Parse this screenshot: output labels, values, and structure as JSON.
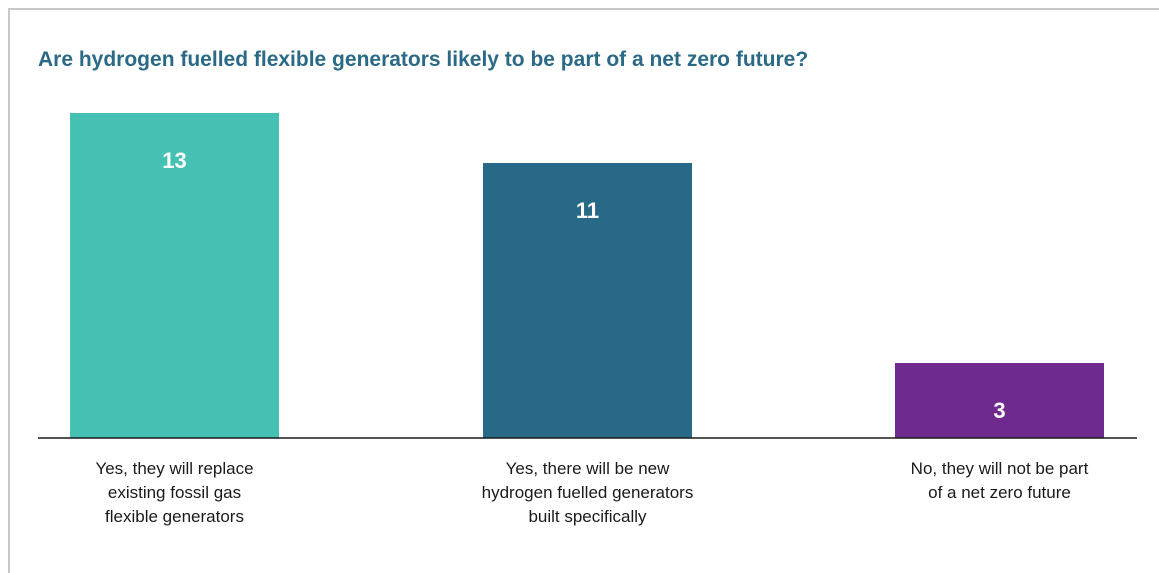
{
  "chart_data": {
    "type": "bar",
    "title": "Are hydrogen fuelled flexible generators likely to be part of a net zero future?",
    "categories": [
      [
        "Yes, they will replace",
        "existing fossil gas",
        "flexible generators"
      ],
      [
        "Yes, there will be new",
        "hydrogen fuelled generators",
        "built specifically"
      ],
      [
        "No, they will not be part",
        "of a net zero future"
      ]
    ],
    "values": [
      13,
      11,
      3
    ],
    "colors": [
      "#45c1b3",
      "#286987",
      "#6e2a8c"
    ],
    "data_labels": true,
    "grid": false,
    "ylim": [
      0,
      13
    ]
  }
}
